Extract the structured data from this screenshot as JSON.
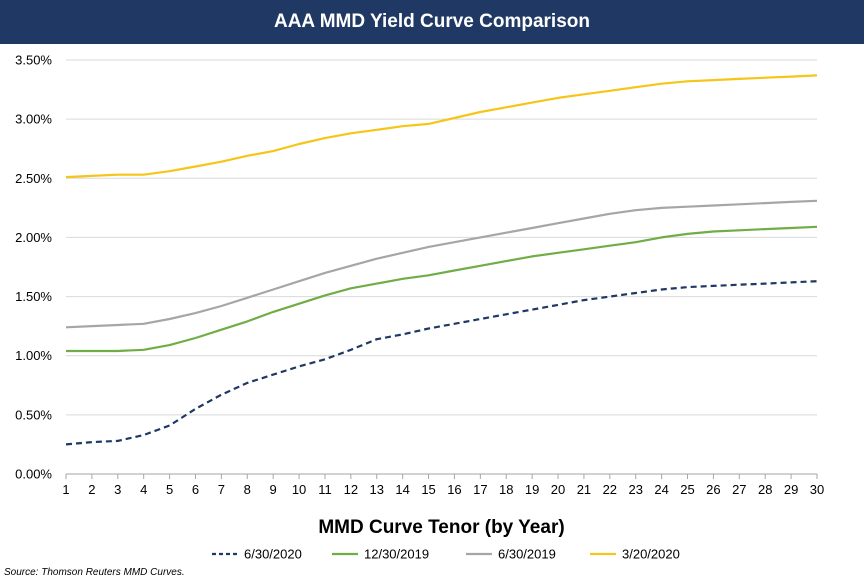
{
  "chart_data": {
    "type": "line",
    "title": "AAA MMD Yield Curve Comparison",
    "xlabel": "MMD Curve Tenor (by Year)",
    "ylabel": "",
    "ylim": [
      0,
      3.5
    ],
    "yticks": [
      "0.00%",
      "0.50%",
      "1.00%",
      "1.50%",
      "2.00%",
      "2.50%",
      "3.00%",
      "3.50%"
    ],
    "ytick_values": [
      0,
      0.5,
      1.0,
      1.5,
      2.0,
      2.5,
      3.0,
      3.5
    ],
    "x": [
      1,
      2,
      3,
      4,
      5,
      6,
      7,
      8,
      9,
      10,
      11,
      12,
      13,
      14,
      15,
      16,
      17,
      18,
      19,
      20,
      21,
      22,
      23,
      24,
      25,
      26,
      27,
      28,
      29,
      30
    ],
    "xticks": [
      "1",
      "2",
      "3",
      "4",
      "5",
      "6",
      "7",
      "8",
      "9",
      "10",
      "11",
      "12",
      "13",
      "14",
      "15",
      "16",
      "17",
      "18",
      "19",
      "20",
      "21",
      "22",
      "23",
      "24",
      "25",
      "26",
      "27",
      "28",
      "29",
      "30"
    ],
    "legend_position": "bottom",
    "series": [
      {
        "name": "6/30/2020",
        "color": "#1f3864",
        "dash": true,
        "values": [
          0.25,
          0.27,
          0.28,
          0.33,
          0.41,
          0.55,
          0.67,
          0.77,
          0.84,
          0.91,
          0.97,
          1.05,
          1.14,
          1.18,
          1.23,
          1.27,
          1.31,
          1.35,
          1.39,
          1.43,
          1.47,
          1.5,
          1.53,
          1.56,
          1.58,
          1.59,
          1.6,
          1.61,
          1.62,
          1.63
        ]
      },
      {
        "name": "12/30/2019",
        "color": "#70ad47",
        "dash": false,
        "values": [
          1.04,
          1.04,
          1.04,
          1.05,
          1.09,
          1.15,
          1.22,
          1.29,
          1.37,
          1.44,
          1.51,
          1.57,
          1.61,
          1.65,
          1.68,
          1.72,
          1.76,
          1.8,
          1.84,
          1.87,
          1.9,
          1.93,
          1.96,
          2.0,
          2.03,
          2.05,
          2.06,
          2.07,
          2.08,
          2.09
        ]
      },
      {
        "name": "6/30/2019",
        "color": "#a6a6a6",
        "dash": false,
        "values": [
          1.24,
          1.25,
          1.26,
          1.27,
          1.31,
          1.36,
          1.42,
          1.49,
          1.56,
          1.63,
          1.7,
          1.76,
          1.82,
          1.87,
          1.92,
          1.96,
          2.0,
          2.04,
          2.08,
          2.12,
          2.16,
          2.2,
          2.23,
          2.25,
          2.26,
          2.27,
          2.28,
          2.29,
          2.3,
          2.31
        ]
      },
      {
        "name": "3/20/2020",
        "color": "#f5c518",
        "dash": false,
        "values": [
          2.51,
          2.52,
          2.53,
          2.53,
          2.56,
          2.6,
          2.64,
          2.69,
          2.73,
          2.79,
          2.84,
          2.88,
          2.91,
          2.94,
          2.96,
          3.01,
          3.06,
          3.1,
          3.14,
          3.18,
          3.21,
          3.24,
          3.27,
          3.3,
          3.32,
          3.33,
          3.34,
          3.35,
          3.36,
          3.37
        ]
      }
    ]
  },
  "source_note": "Source: Thomson Reuters MMD Curves."
}
